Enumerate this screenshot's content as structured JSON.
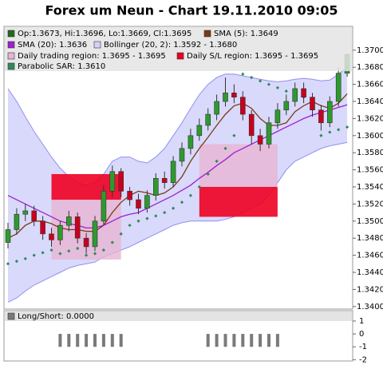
{
  "chart_data": {
    "type": "candlestick",
    "title": "Forex um Neun - Chart 19.11.2010 09:05",
    "ohlc": {
      "name": "Op:1.3673, Hi:1.3696, Lo:1.3669, Cl:1.3695",
      "color": "#1f6b1f",
      "up_color": "#2e9a2e",
      "down_color": "#c8001e",
      "open": [
        1.3475,
        1.349,
        1.3508,
        1.3512,
        1.35,
        1.3485,
        1.3478,
        1.3495,
        1.3505,
        1.348,
        1.347,
        1.35,
        1.3535,
        1.3558,
        1.3535,
        1.3525,
        1.3515,
        1.353,
        1.355,
        1.3545,
        1.357,
        1.3585,
        1.36,
        1.3612,
        1.3625,
        1.364,
        1.365,
        1.3645,
        1.3625,
        1.36,
        1.359,
        1.3615,
        1.363,
        1.364,
        1.3655,
        1.3645,
        1.363,
        1.3615,
        1.364,
        1.3673
      ],
      "high": [
        1.3498,
        1.3515,
        1.352,
        1.3518,
        1.3506,
        1.3492,
        1.35,
        1.3512,
        1.351,
        1.3486,
        1.3506,
        1.3542,
        1.3565,
        1.3562,
        1.354,
        1.3532,
        1.3536,
        1.3556,
        1.3558,
        1.3576,
        1.3592,
        1.3608,
        1.362,
        1.3632,
        1.3648,
        1.3668,
        1.366,
        1.3652,
        1.363,
        1.3608,
        1.3622,
        1.3638,
        1.3648,
        1.3662,
        1.3662,
        1.365,
        1.3636,
        1.3646,
        1.368,
        1.3696
      ],
      "low": [
        1.3468,
        1.3484,
        1.35,
        1.3494,
        1.3478,
        1.347,
        1.3472,
        1.3488,
        1.3474,
        1.3462,
        1.3465,
        1.3495,
        1.3528,
        1.3528,
        1.3518,
        1.3508,
        1.351,
        1.3524,
        1.3538,
        1.354,
        1.3564,
        1.3578,
        1.3594,
        1.3606,
        1.3618,
        1.3634,
        1.3638,
        1.3618,
        1.359,
        1.3582,
        1.3585,
        1.3608,
        1.3624,
        1.3634,
        1.3638,
        1.3622,
        1.3606,
        1.361,
        1.3634,
        1.3669
      ],
      "close": [
        1.349,
        1.3508,
        1.3512,
        1.35,
        1.3485,
        1.3478,
        1.3495,
        1.3505,
        1.348,
        1.347,
        1.35,
        1.3535,
        1.3558,
        1.3535,
        1.3525,
        1.3515,
        1.353,
        1.355,
        1.3545,
        1.357,
        1.3585,
        1.36,
        1.3612,
        1.3625,
        1.364,
        1.365,
        1.3645,
        1.3625,
        1.36,
        1.359,
        1.3615,
        1.363,
        1.364,
        1.3655,
        1.3645,
        1.363,
        1.3615,
        1.364,
        1.3673,
        1.3695
      ]
    },
    "series": [
      {
        "name": "SMA (5): 1.3649",
        "color": "#7a3b12",
        "values": [
          1.348,
          1.3485,
          1.3495,
          1.35,
          1.35,
          1.3497,
          1.3492,
          1.349,
          1.349,
          1.3488,
          1.3488,
          1.3495,
          1.351,
          1.3522,
          1.353,
          1.3535,
          1.3533,
          1.353,
          1.3533,
          1.354,
          1.3552,
          1.357,
          1.3585,
          1.3598,
          1.3612,
          1.3625,
          1.3635,
          1.3638,
          1.3632,
          1.362,
          1.3612,
          1.3612,
          1.3615,
          1.3628,
          1.3635,
          1.364,
          1.3635,
          1.3632,
          1.3638,
          1.3649
        ]
      },
      {
        "name": "SMA (20): 1.3636",
        "color": "#a020d0",
        "values": [
          1.353,
          1.3525,
          1.352,
          1.3515,
          1.351,
          1.3505,
          1.35,
          1.3497,
          1.3495,
          1.3492,
          1.3492,
          1.3495,
          1.35,
          1.3505,
          1.3508,
          1.351,
          1.3515,
          1.352,
          1.3525,
          1.353,
          1.3536,
          1.3542,
          1.355,
          1.3557,
          1.3565,
          1.3572,
          1.358,
          1.3585,
          1.359,
          1.3595,
          1.36,
          1.3605,
          1.361,
          1.3615,
          1.362,
          1.3624,
          1.3627,
          1.363,
          1.3633,
          1.3636
        ]
      }
    ],
    "bands": {
      "name": "Bollinger (20, 2): 1.3592 - 1.3680",
      "color": "#9090f0",
      "fill": "#d2d2fb",
      "upper": [
        1.3655,
        1.364,
        1.3622,
        1.3605,
        1.359,
        1.3575,
        1.3562,
        1.3552,
        1.3545,
        1.3542,
        1.3545,
        1.3555,
        1.357,
        1.3575,
        1.3575,
        1.357,
        1.3568,
        1.3575,
        1.3585,
        1.36,
        1.3615,
        1.3632,
        1.3648,
        1.366,
        1.3668,
        1.3672,
        1.3672,
        1.367,
        1.3668,
        1.3666,
        1.3664,
        1.3663,
        1.3664,
        1.3666,
        1.3667,
        1.3666,
        1.3664,
        1.3665,
        1.3672,
        1.368
      ],
      "lower": [
        1.3405,
        1.341,
        1.3418,
        1.3425,
        1.343,
        1.3435,
        1.344,
        1.3445,
        1.3448,
        1.345,
        1.3452,
        1.3458,
        1.3462,
        1.3466,
        1.347,
        1.3475,
        1.348,
        1.3485,
        1.349,
        1.3495,
        1.3498,
        1.35,
        1.35,
        1.35,
        1.35,
        1.3502,
        1.3505,
        1.351,
        1.3515,
        1.352,
        1.353,
        1.3545,
        1.356,
        1.357,
        1.3575,
        1.358,
        1.3585,
        1.3588,
        1.359,
        1.3592
      ]
    },
    "trading_region": {
      "name": "Daily trading region: 1.3695 - 1.3695",
      "color": "#e7b4d2"
    },
    "sl_region": {
      "name": "Daily S/L region: 1.3695 - 1.3695",
      "color": "#ee0022"
    },
    "regions": [
      {
        "from": 5,
        "to": 13,
        "trading": [
          1.3455,
          1.3525
        ],
        "sl": [
          1.3525,
          1.3555
        ]
      },
      {
        "from": 22,
        "to": 31,
        "trading": [
          1.354,
          1.359
        ],
        "sl": [
          1.3505,
          1.354
        ]
      }
    ],
    "sar": {
      "name": "Parabolic SAR: 1.3610",
      "color": "#2e8b57",
      "values": [
        1.345,
        1.3453,
        1.3456,
        1.346,
        1.3463,
        1.3466,
        1.3462,
        1.3465,
        1.3468,
        1.346,
        1.3462,
        1.3466,
        1.3475,
        1.3485,
        1.3495,
        1.35,
        1.3503,
        1.3506,
        1.351,
        1.3515,
        1.3522,
        1.353,
        1.354,
        1.3555,
        1.357,
        1.3585,
        1.36,
        1.3672,
        1.3668,
        1.3664,
        1.366,
        1.3656,
        1.3652,
        1.3648,
        1.3645,
        1.3642,
        1.36,
        1.3604,
        1.3607,
        1.361
      ]
    },
    "ylim": [
      1.3397,
      1.3726
    ],
    "yticks": [
      {
        "value": 1.34,
        "label": "1.3400"
      },
      {
        "value": 1.342,
        "label": "1.3420"
      },
      {
        "value": 1.344,
        "label": "1.3440"
      },
      {
        "value": 1.346,
        "label": "1.3460"
      },
      {
        "value": 1.348,
        "label": "1.3480"
      },
      {
        "value": 1.35,
        "label": "1.3500"
      },
      {
        "value": 1.352,
        "label": "1.3520"
      },
      {
        "value": 1.354,
        "label": "1.3540"
      },
      {
        "value": 1.356,
        "label": "1.3560"
      },
      {
        "value": 1.358,
        "label": "1.3580"
      },
      {
        "value": 1.36,
        "label": "1.3600"
      },
      {
        "value": 1.362,
        "label": "1.3620"
      },
      {
        "value": 1.364,
        "label": "1.3640"
      },
      {
        "value": 1.366,
        "label": "1.3660"
      },
      {
        "value": 1.368,
        "label": "1.3680"
      },
      {
        "value": 1.37,
        "label": "1.3700"
      }
    ],
    "grid": false,
    "indicator": {
      "title": "Long/Short: 0.0000",
      "color": "#7a7a7a",
      "values": [
        0,
        0,
        0,
        0,
        0,
        0,
        -1,
        -1,
        -1,
        -1,
        -1,
        -1,
        -1,
        -1,
        0,
        0,
        0,
        0,
        0,
        0,
        0,
        0,
        0,
        -1,
        -1,
        -1,
        -1,
        -1,
        -1,
        -1,
        -1,
        -1,
        0,
        0,
        0,
        0,
        0,
        0,
        0,
        0
      ],
      "ylim": [
        -2.1,
        1.8
      ],
      "yticks": [
        1,
        0,
        -1,
        -2
      ]
    }
  }
}
